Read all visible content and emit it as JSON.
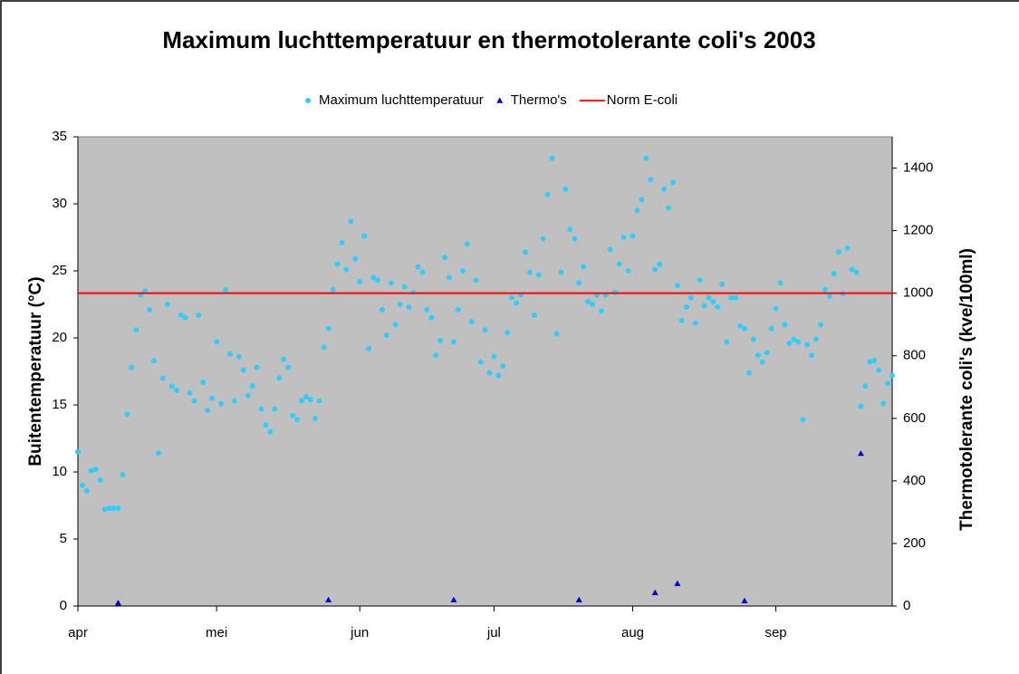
{
  "chart_data": {
    "type": "scatter",
    "title": "Maximum luchttemperatuur en thermotolerante coli's 2003",
    "ylabel": "Buitentemperatuur (°C)",
    "y2label": "Thermotolerante coli's (kve/100ml)",
    "xlim": [
      0,
      182
    ],
    "xticks": [
      {
        "value": 0,
        "label": "apr"
      },
      {
        "value": 31,
        "label": "mei"
      },
      {
        "value": 63,
        "label": "jun"
      },
      {
        "value": 93,
        "label": "jul"
      },
      {
        "value": 124,
        "label": "aug"
      },
      {
        "value": 156,
        "label": "sep"
      }
    ],
    "ylim": [
      0,
      35
    ],
    "yticks": [
      0,
      5,
      10,
      15,
      20,
      25,
      30,
      35
    ],
    "y2lim": [
      0,
      1500
    ],
    "y2ticks": [
      0,
      200,
      400,
      600,
      800,
      1000,
      1200,
      1400
    ],
    "grid": false,
    "legend": "top",
    "background": "#c0c0c0",
    "series": [
      {
        "name": "Maximum luchttemperatuur",
        "color": "#33ccff",
        "marker": "circle",
        "axis": "y",
        "x": [
          0,
          1,
          2,
          3,
          4,
          5,
          6,
          7,
          8,
          9,
          10,
          11,
          12,
          13,
          14,
          15,
          16,
          17,
          18,
          19,
          20,
          21,
          22,
          23,
          24,
          25,
          26,
          27,
          28,
          29,
          30,
          31,
          32,
          33,
          34,
          35,
          36,
          37,
          38,
          39,
          40,
          41,
          42,
          43,
          44,
          45,
          46,
          47,
          48,
          49,
          50,
          51,
          52,
          53,
          54,
          55,
          56,
          57,
          58,
          59,
          60,
          61,
          62,
          63,
          64,
          65,
          66,
          67,
          68,
          69,
          70,
          71,
          72,
          73,
          74,
          75,
          76,
          77,
          78,
          79,
          80,
          81,
          82,
          83,
          84,
          85,
          86,
          87,
          88,
          89,
          90,
          91,
          92,
          93,
          94,
          95,
          96,
          97,
          98,
          99,
          100,
          101,
          102,
          103,
          104,
          105,
          106,
          107,
          108,
          109,
          110,
          111,
          112,
          113,
          114,
          115,
          116,
          117,
          118,
          119,
          120,
          121,
          122,
          123,
          124,
          125,
          126,
          127,
          128,
          129,
          130,
          131,
          132,
          133,
          134,
          135,
          136,
          137,
          138,
          139,
          140,
          141,
          142,
          143,
          144,
          145,
          146,
          147,
          148,
          149,
          150,
          151,
          152,
          153,
          154,
          155,
          156,
          157,
          158,
          159,
          160,
          161,
          162,
          163,
          164,
          165,
          166,
          167,
          168,
          169,
          170,
          171,
          172,
          173,
          174,
          175,
          176,
          177,
          178,
          179,
          180,
          181,
          182
        ],
        "values": [
          11.5,
          9.0,
          8.6,
          10.1,
          10.2,
          9.4,
          7.2,
          7.3,
          7.3,
          7.3,
          9.8,
          14.3,
          17.8,
          20.6,
          23.2,
          23.5,
          22.1,
          18.3,
          11.4,
          17.0,
          22.5,
          16.4,
          16.1,
          21.7,
          21.5,
          15.9,
          15.3,
          21.7,
          16.7,
          14.6,
          15.5,
          19.7,
          15.1,
          23.6,
          18.8,
          15.3,
          18.6,
          17.6,
          15.7,
          16.4,
          17.8,
          14.7,
          13.5,
          13.0,
          14.7,
          17.0,
          18.4,
          17.8,
          14.2,
          13.9,
          15.3,
          15.6,
          15.4,
          14.0,
          15.3,
          19.3,
          20.7,
          23.6,
          25.5,
          27.1,
          25.1,
          28.7,
          25.9,
          24.2,
          27.6,
          19.2,
          24.5,
          24.3,
          22.1,
          20.2,
          24.1,
          21.0,
          22.5,
          23.8,
          22.3,
          23.4,
          25.3,
          24.9,
          22.1,
          21.5,
          18.7,
          19.8,
          26.0,
          24.5,
          19.7,
          22.1,
          25.0,
          27.0,
          21.2,
          24.3,
          18.2,
          20.6,
          17.4,
          18.6,
          17.2,
          17.9,
          20.4,
          23.0,
          22.6,
          23.2,
          26.4,
          24.9,
          21.7,
          24.7,
          27.4,
          30.7,
          33.4,
          20.3,
          24.9,
          31.1,
          28.1,
          27.4,
          24.1,
          25.3,
          22.7,
          22.5,
          23.2,
          22.0,
          23.2,
          26.6,
          23.4,
          25.5,
          27.5,
          25.0,
          27.6,
          29.5,
          30.3,
          33.4,
          31.8,
          25.1,
          25.5,
          31.1,
          29.7,
          31.6,
          23.9,
          21.3,
          22.3,
          23.0,
          21.1,
          24.3,
          22.4,
          23.0,
          22.7,
          22.3,
          24.0,
          19.7,
          23.0,
          23.0,
          20.9,
          20.7,
          17.4,
          19.9,
          18.7,
          18.2,
          18.9,
          20.7,
          22.2,
          24.1,
          21.0,
          19.6,
          19.9,
          19.7,
          13.9,
          19.5,
          18.7,
          19.9,
          21.0,
          23.6,
          23.1,
          24.8,
          26.4,
          23.3,
          26.7,
          25.1,
          24.9,
          14.9,
          16.4,
          18.2,
          18.3,
          17.6,
          15.1,
          16.6,
          17.2
        ]
      },
      {
        "name": "Thermo's",
        "color": "#0000cc",
        "marker": "triangle",
        "axis": "y2",
        "x": [
          9,
          56,
          84,
          112,
          129,
          134,
          149,
          175
        ],
        "values": [
          10,
          20,
          20,
          20,
          43,
          72,
          17,
          488
        ]
      },
      {
        "name": "Norm E-coli",
        "color": "#ff0000",
        "marker": "line",
        "axis": "y2",
        "x": [
          0,
          182
        ],
        "values": [
          1000,
          1000
        ]
      }
    ]
  }
}
